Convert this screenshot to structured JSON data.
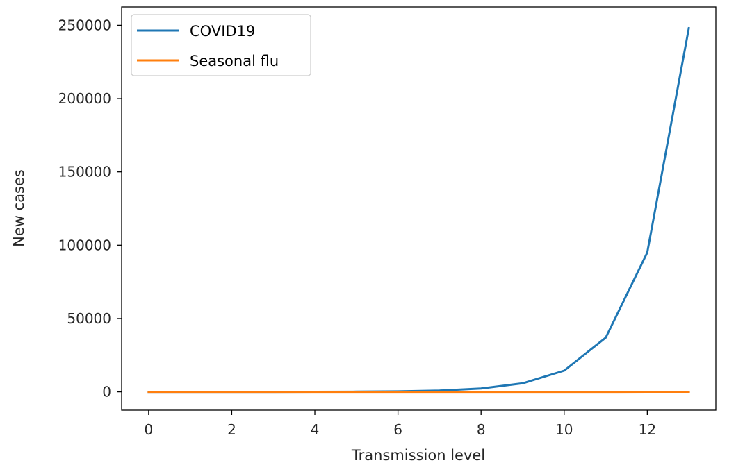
{
  "chart_data": {
    "type": "line",
    "title": "",
    "xlabel": "Transmission level",
    "ylabel": "New cases",
    "xlim": [
      -0.65,
      13.65
    ],
    "ylim": [
      -12500,
      262500
    ],
    "xticks": [
      0,
      2,
      4,
      6,
      8,
      10,
      12
    ],
    "yticks": [
      0,
      50000,
      100000,
      150000,
      200000,
      250000
    ],
    "grid": false,
    "legend_position": "top-left",
    "x": [
      0,
      1,
      2,
      3,
      4,
      5,
      6,
      7,
      8,
      9,
      10,
      11,
      12,
      13
    ],
    "series": [
      {
        "name": "COVID19",
        "color": "#1f77b4",
        "values": [
          1,
          3,
          7,
          19,
          50,
          130,
          340,
          900,
          2300,
          5800,
          14500,
          37000,
          95000,
          248000
        ]
      },
      {
        "name": "Seasonal flu",
        "color": "#ff7f0e",
        "values": [
          1,
          1,
          2,
          2,
          3,
          4,
          5,
          6,
          8,
          10,
          13,
          17,
          22,
          29
        ]
      }
    ]
  }
}
